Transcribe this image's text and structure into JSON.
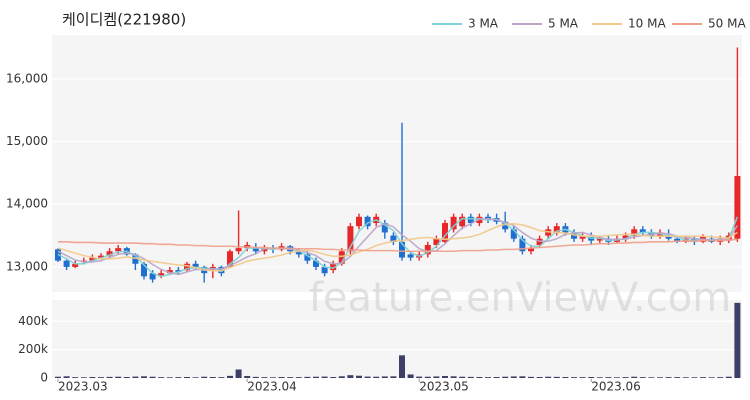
{
  "chart_data": [
    {
      "type": "candlestick",
      "title": "케이디켐(221980)",
      "watermark": "feature.enViewV.com",
      "categories": [
        "2023.03",
        null,
        null,
        null,
        null,
        null,
        null,
        null,
        null,
        null,
        null,
        null,
        null,
        null,
        null,
        null,
        null,
        null,
        null,
        null,
        null,
        null,
        "2023.04",
        null,
        null,
        null,
        null,
        null,
        null,
        null,
        null,
        null,
        null,
        null,
        null,
        null,
        null,
        null,
        null,
        null,
        null,
        null,
        "2023.05",
        null,
        null,
        null,
        null,
        null,
        null,
        null,
        null,
        null,
        null,
        null,
        null,
        null,
        null,
        null,
        null,
        null,
        null,
        null,
        "2023.06",
        null,
        null,
        null,
        null,
        null,
        null,
        null,
        null,
        null,
        null,
        null,
        null,
        null,
        null,
        null,
        null,
        null
      ],
      "open": [
        13280,
        13100,
        13000,
        13080,
        13100,
        13150,
        13180,
        13250,
        13300,
        13200,
        13050,
        12900,
        12850,
        12900,
        12950,
        12950,
        13050,
        13000,
        12950,
        13000,
        13000,
        13250,
        13300,
        13300,
        13250,
        13300,
        13280,
        13330,
        13250,
        13200,
        13100,
        13000,
        12950,
        13050,
        13250,
        13650,
        13800,
        13700,
        13700,
        13500,
        13400,
        13200,
        13150,
        13200,
        13350,
        13400,
        13600,
        13650,
        13800,
        13700,
        13800,
        13780,
        13720,
        13600,
        13450,
        13250,
        13350,
        13500,
        13550,
        13650,
        13550,
        13450,
        13480,
        13420,
        13450,
        13400,
        13450,
        13500,
        13600,
        13550,
        13500,
        13500,
        13450,
        13400,
        13450,
        13400,
        13450,
        13400,
        13420,
        13450
      ],
      "high": [
        13300,
        13120,
        13100,
        13150,
        13200,
        13220,
        13300,
        13350,
        13320,
        13220,
        13080,
        12950,
        12950,
        13000,
        13000,
        13080,
        13100,
        13020,
        13050,
        13020,
        13280,
        13900,
        13400,
        13380,
        13350,
        13350,
        13380,
        13350,
        13300,
        13250,
        13150,
        13050,
        13100,
        13300,
        13700,
        13850,
        13820,
        13850,
        13750,
        13550,
        15300,
        13250,
        13250,
        13400,
        13500,
        13750,
        13850,
        13850,
        13850,
        13850,
        13850,
        13850,
        13880,
        13650,
        13500,
        13350,
        13500,
        13650,
        13700,
        13700,
        13600,
        13550,
        13550,
        13500,
        13500,
        13500,
        13550,
        13650,
        13650,
        13600,
        13600,
        13600,
        13500,
        13500,
        13500,
        13520,
        13500,
        13500,
        13550,
        16500
      ],
      "low": [
        13080,
        12950,
        12980,
        13050,
        13080,
        13120,
        13150,
        13200,
        13180,
        12950,
        12800,
        12750,
        12820,
        12880,
        12880,
        12920,
        12950,
        12750,
        12820,
        12850,
        12980,
        13200,
        13250,
        13200,
        13200,
        13220,
        13250,
        13200,
        13150,
        13050,
        12950,
        12850,
        12900,
        13020,
        13200,
        13600,
        13600,
        13650,
        13450,
        13350,
        13100,
        13100,
        13100,
        13150,
        13300,
        13380,
        13550,
        13600,
        13650,
        13650,
        13700,
        13680,
        13550,
        13400,
        13200,
        13200,
        13300,
        13450,
        13500,
        13500,
        13400,
        13400,
        13350,
        13380,
        13350,
        13380,
        13400,
        13450,
        13500,
        13450,
        13450,
        13420,
        13380,
        13380,
        13350,
        13380,
        13380,
        13350,
        13380,
        13400
      ],
      "close": [
        13100,
        13000,
        13050,
        13100,
        13150,
        13180,
        13250,
        13300,
        13200,
        13050,
        12850,
        12800,
        12900,
        12950,
        12920,
        13050,
        13000,
        12900,
        13000,
        12900,
        13250,
        13300,
        13350,
        13250,
        13300,
        13280,
        13330,
        13250,
        13200,
        13100,
        13000,
        12900,
        13050,
        13250,
        13650,
        13800,
        13650,
        13800,
        13550,
        13400,
        13150,
        13150,
        13200,
        13350,
        13450,
        13700,
        13800,
        13800,
        13700,
        13800,
        13750,
        13720,
        13600,
        13450,
        13250,
        13300,
        13450,
        13600,
        13650,
        13550,
        13450,
        13500,
        13420,
        13450,
        13400,
        13450,
        13500,
        13600,
        13550,
        13500,
        13550,
        13450,
        13400,
        13450,
        13400,
        13480,
        13400,
        13450,
        13500,
        14450
      ],
      "up_color": "#e8272a",
      "down_color": "#1f6fd1",
      "series": [
        {
          "name": "3 MA",
          "color": "#7fd3d6",
          "values": [
            13200,
            13130,
            13050,
            13050,
            13100,
            13140,
            13190,
            13240,
            13250,
            13180,
            13030,
            12900,
            12850,
            12880,
            12920,
            12970,
            12990,
            12980,
            12970,
            12930,
            13050,
            13150,
            13300,
            13300,
            13300,
            13280,
            13300,
            13290,
            13260,
            13180,
            13100,
            13000,
            12980,
            13070,
            13320,
            13570,
            13700,
            13750,
            13670,
            13580,
            13370,
            13230,
            13170,
            13230,
            13330,
            13500,
            13650,
            13770,
            13770,
            13770,
            13750,
            13760,
            13690,
            13590,
            13430,
            13330,
            13330,
            13450,
            13570,
            13600,
            13550,
            13500,
            13460,
            13460,
            13420,
            13430,
            13450,
            13520,
            13550,
            13550,
            13530,
            13500,
            13470,
            13430,
            13420,
            13440,
            13430,
            13440,
            13450,
            13800
          ]
        },
        {
          "name": "5 MA",
          "color": "#b9a6c9",
          "values": [
            13250,
            13180,
            13110,
            13080,
            13080,
            13100,
            13150,
            13200,
            13220,
            13200,
            13130,
            13040,
            12960,
            12910,
            12880,
            12920,
            12960,
            12960,
            12970,
            12970,
            13020,
            13090,
            13160,
            13210,
            13290,
            13300,
            13300,
            13280,
            13270,
            13230,
            13180,
            13090,
            13050,
            13060,
            13170,
            13330,
            13480,
            13630,
            13690,
            13640,
            13510,
            13410,
            13290,
            13250,
            13260,
            13370,
            13500,
            13620,
            13690,
            13760,
            13770,
            13750,
            13710,
            13660,
            13550,
            13460,
            13410,
            13410,
            13450,
            13520,
            13540,
            13550,
            13510,
            13470,
            13440,
            13440,
            13440,
            13480,
            13500,
            13520,
            13540,
            13530,
            13490,
            13470,
            13450,
            13440,
            13430,
            13440,
            13450,
            13660
          ]
        },
        {
          "name": "10 MA",
          "color": "#f2c98a",
          "values": [
            13300,
            13260,
            13220,
            13180,
            13150,
            13130,
            13130,
            13140,
            13160,
            13140,
            13110,
            13090,
            13070,
            13050,
            13030,
            13020,
            12990,
            12950,
            12940,
            12940,
            12990,
            13040,
            13090,
            13120,
            13140,
            13160,
            13190,
            13230,
            13250,
            13270,
            13240,
            13200,
            13170,
            13170,
            13190,
            13240,
            13280,
            13340,
            13380,
            13410,
            13420,
            13440,
            13460,
            13470,
            13450,
            13440,
            13450,
            13460,
            13480,
            13520,
            13580,
            13640,
            13680,
            13690,
            13670,
            13630,
            13580,
            13560,
            13550,
            13540,
            13510,
            13490,
            13490,
            13490,
            13500,
            13510,
            13520,
            13520,
            13500,
            13490,
            13490,
            13490,
            13490,
            13490,
            13490,
            13490,
            13480,
            13470,
            13460,
            13550
          ]
        },
        {
          "name": "50 MA",
          "color": "#f0a08a",
          "values": [
            13400,
            13400,
            13390,
            13390,
            13390,
            13380,
            13380,
            13380,
            13380,
            13380,
            13370,
            13370,
            13360,
            13360,
            13350,
            13350,
            13340,
            13340,
            13330,
            13330,
            13330,
            13320,
            13320,
            13310,
            13310,
            13300,
            13300,
            13300,
            13290,
            13290,
            13290,
            13280,
            13280,
            13270,
            13270,
            13270,
            13260,
            13260,
            13260,
            13260,
            13250,
            13250,
            13250,
            13250,
            13250,
            13250,
            13250,
            13260,
            13260,
            13260,
            13270,
            13270,
            13280,
            13280,
            13290,
            13300,
            13310,
            13320,
            13330,
            13340,
            13350,
            13350,
            13360,
            13370,
            13370,
            13380,
            13380,
            13390,
            13390,
            13400,
            13400,
            13400,
            13410,
            13410,
            13410,
            13420,
            13420,
            13420,
            13430,
            13440
          ]
        }
      ],
      "ylim": [
        12600,
        16700
      ],
      "yticks": [
        {
          "value": 13000,
          "label": "13,000"
        },
        {
          "value": 14000,
          "label": "14,000"
        },
        {
          "value": 15000,
          "label": "15,000"
        },
        {
          "value": 16000,
          "label": "16,000"
        }
      ],
      "grid": true
    },
    {
      "type": "bar",
      "color": "#3d3f66",
      "values": [
        9000,
        12000,
        6000,
        5000,
        7000,
        6000,
        8000,
        9000,
        7000,
        10000,
        12000,
        9000,
        6000,
        5000,
        6000,
        7000,
        5000,
        9000,
        7000,
        6000,
        15000,
        60000,
        14000,
        8000,
        6000,
        5000,
        7000,
        6000,
        6000,
        8000,
        9000,
        10000,
        7000,
        12000,
        20000,
        16000,
        10000,
        9000,
        11000,
        12000,
        160000,
        25000,
        10000,
        9000,
        11000,
        14000,
        12000,
        9000,
        8000,
        7000,
        6000,
        7000,
        9000,
        11000,
        12000,
        8000,
        7000,
        9000,
        8000,
        7000,
        6000,
        6000,
        7000,
        5000,
        6000,
        5000,
        6000,
        9000,
        6000,
        5000,
        5000,
        6000,
        6000,
        5000,
        5000,
        6000,
        5000,
        6000,
        9000,
        530000
      ],
      "ylim": [
        0,
        550000
      ],
      "yticks": [
        0,
        {
          "value": 200000,
          "label": "200k"
        },
        {
          "value": 400000,
          "label": "400k"
        }
      ],
      "grid": true
    }
  ]
}
